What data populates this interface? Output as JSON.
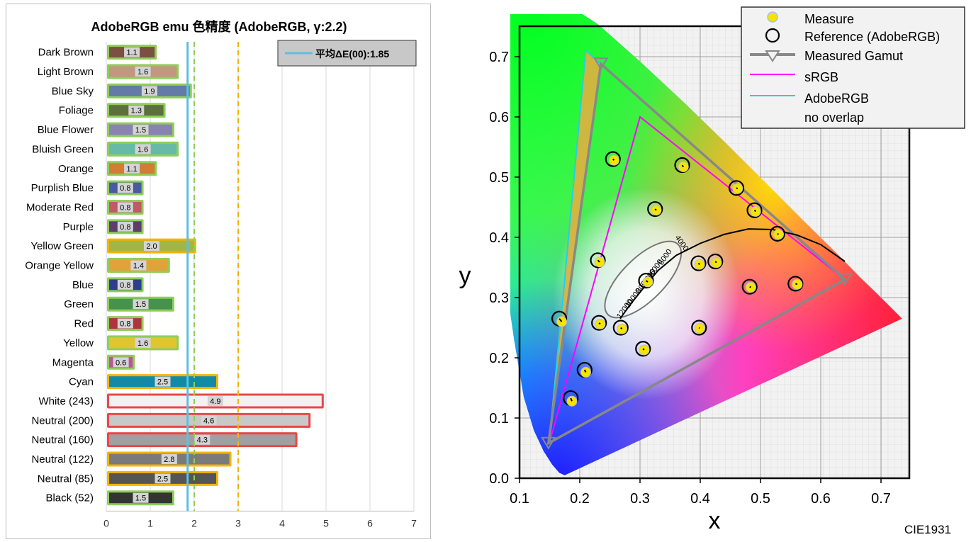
{
  "chart_data": [
    {
      "type": "bar",
      "title": "AdobeRGB emu 色精度 (AdobeRGB, γ:2.2)",
      "categories": [
        "Dark Brown",
        "Light Brown",
        "Blue Sky",
        "Foliage",
        "Blue Flower",
        "Bluish Green",
        "Orange",
        "Purplish Blue",
        "Moderate Red",
        "Purple",
        "Yellow Green",
        "Orange Yellow",
        "Blue",
        "Green",
        "Red",
        "Yellow",
        "Magenta",
        "Cyan",
        "White (243)",
        "Neutral (200)",
        "Neutral (160)",
        "Neutral (122)",
        "Neutral (85)",
        "Black (52)"
      ],
      "values": [
        1.1,
        1.6,
        1.9,
        1.3,
        1.5,
        1.6,
        1.1,
        0.8,
        0.8,
        0.8,
        2.0,
        1.4,
        0.8,
        1.5,
        0.8,
        1.6,
        0.6,
        2.5,
        4.9,
        4.6,
        4.3,
        2.8,
        2.5,
        1.5
      ],
      "value_labels": [
        "1.1",
        "1.6",
        "1.9",
        "1.3",
        "1.5",
        "1.6",
        "1.1",
        "0.8",
        "0.8",
        "0.8",
        "2.0",
        "1.4",
        "0.8",
        "1.5",
        "0.8",
        "1.6",
        "0.6",
        "2.5",
        "4.9",
        "4.6",
        "4.3",
        "2.8",
        "2.5",
        "1.5"
      ],
      "bar_colors": [
        "#7a5040",
        "#c49582",
        "#637ba6",
        "#5c6f3e",
        "#8a82b5",
        "#67bba6",
        "#d07e35",
        "#4a5aa0",
        "#c05a63",
        "#5e3d6c",
        "#a3b644",
        "#e0a33a",
        "#2e3e8f",
        "#46914c",
        "#ae353c",
        "#e0c530",
        "#bb5597",
        "#128aa6",
        "#f2f2f2",
        "#c8c8c8",
        "#a0a0a0",
        "#7a7a7a",
        "#555555",
        "#343434"
      ],
      "outline_colors": [
        "#8fce5a",
        "#8fce5a",
        "#8fce5a",
        "#8fce5a",
        "#8fce5a",
        "#8fce5a",
        "#8fce5a",
        "#8fce5a",
        "#8fce5a",
        "#8fce5a",
        "#f5b400",
        "#8fce5a",
        "#8fce5a",
        "#8fce5a",
        "#8fce5a",
        "#8fce5a",
        "#8fce5a",
        "#f5b400",
        "#e8474b",
        "#e8474b",
        "#e8474b",
        "#f5b400",
        "#f5b400",
        "#8fce5a"
      ],
      "xlim": [
        0,
        7
      ],
      "xticks": [
        "0",
        "1",
        "2",
        "3",
        "4",
        "5",
        "6",
        "7"
      ],
      "reference_lines": [
        {
          "value": 1.85,
          "style": "solid",
          "color": "#5cc0e0"
        },
        {
          "value": 2.0,
          "style": "dashed",
          "color": "#8fce5a"
        },
        {
          "value": 3.0,
          "style": "dashed",
          "color": "#f5b400"
        }
      ],
      "legend": {
        "label": "平均ΔE(00):1.85",
        "position": "top-right"
      },
      "grid": true
    },
    {
      "type": "scatter",
      "xlabel": "x",
      "ylabel": "y",
      "xlim": [
        0.1,
        0.75
      ],
      "ylim": [
        0.0,
        0.75
      ],
      "xticks": [
        "0.1",
        "0.2",
        "0.3",
        "0.4",
        "0.5",
        "0.6",
        "0.7"
      ],
      "yticks": [
        "0.0",
        "0.1",
        "0.2",
        "0.3",
        "0.4",
        "0.5",
        "0.6",
        "0.7"
      ],
      "footer": "CIE1931",
      "legend": [
        "Measure",
        "Reference (AdobeRGB)",
        "Measured Gamut",
        "sRGB",
        "AdobeRGB",
        "no overlap"
      ],
      "legend_position": "top-right",
      "planckian_labels": [
        "4000",
        "5000",
        "6000",
        "7000",
        "8000",
        "10000",
        "12000"
      ],
      "measured_gamut": [
        [
          0.64,
          0.33
        ],
        [
          0.235,
          0.688
        ],
        [
          0.148,
          0.058
        ]
      ],
      "srgb_gamut": [
        [
          0.64,
          0.33
        ],
        [
          0.3,
          0.6
        ],
        [
          0.15,
          0.06
        ]
      ],
      "adobergb_gamut": [
        [
          0.64,
          0.33
        ],
        [
          0.21,
          0.71
        ],
        [
          0.15,
          0.06
        ]
      ],
      "reference_points": [
        [
          0.255,
          0.53
        ],
        [
          0.37,
          0.52
        ],
        [
          0.46,
          0.482
        ],
        [
          0.325,
          0.447
        ],
        [
          0.49,
          0.445
        ],
        [
          0.528,
          0.406
        ],
        [
          0.23,
          0.362
        ],
        [
          0.397,
          0.357
        ],
        [
          0.425,
          0.36
        ],
        [
          0.31,
          0.328
        ],
        [
          0.482,
          0.318
        ],
        [
          0.558,
          0.323
        ],
        [
          0.166,
          0.265
        ],
        [
          0.232,
          0.258
        ],
        [
          0.268,
          0.25
        ],
        [
          0.398,
          0.25
        ],
        [
          0.305,
          0.215
        ],
        [
          0.208,
          0.18
        ],
        [
          0.185,
          0.133
        ]
      ],
      "measured_points": [
        [
          0.257,
          0.528
        ],
        [
          0.372,
          0.517
        ],
        [
          0.462,
          0.481
        ],
        [
          0.327,
          0.445
        ],
        [
          0.492,
          0.443
        ],
        [
          0.53,
          0.405
        ],
        [
          0.233,
          0.359
        ],
        [
          0.399,
          0.355
        ],
        [
          0.427,
          0.358
        ],
        [
          0.313,
          0.326
        ],
        [
          0.484,
          0.317
        ],
        [
          0.561,
          0.322
        ],
        [
          0.17,
          0.26
        ],
        [
          0.234,
          0.256
        ],
        [
          0.27,
          0.248
        ],
        [
          0.399,
          0.249
        ],
        [
          0.307,
          0.213
        ],
        [
          0.21,
          0.176
        ],
        [
          0.187,
          0.128
        ]
      ]
    }
  ]
}
